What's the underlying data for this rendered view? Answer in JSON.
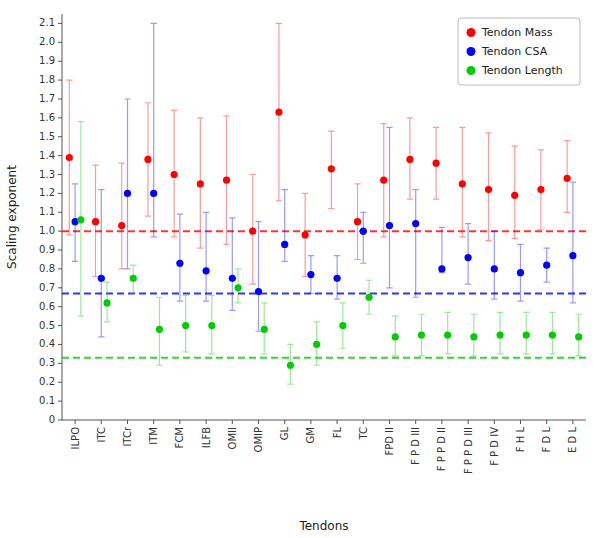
{
  "chart_data": {
    "type": "scatter",
    "xlabel": "Tendons",
    "ylabel": "Scaling exponent",
    "categories": [
      "ILPO",
      "ITC",
      "ITCr",
      "ITM",
      "FCM",
      "ILFB",
      "OMII",
      "OMIP",
      "GL",
      "GM",
      "FL",
      "TC",
      "FPD II",
      "F P D III",
      "F P P D II",
      "F P P D III",
      "F P D IV",
      "F H L",
      "F D L",
      "E D L"
    ],
    "series": [
      {
        "name": "Tendon Mass",
        "color": "#ff0000",
        "reference": 1.0,
        "values": [
          1.39,
          1.05,
          1.03,
          1.38,
          1.3,
          1.25,
          1.27,
          1.0,
          1.63,
          0.98,
          1.33,
          1.05,
          1.27,
          1.38,
          1.36,
          1.25,
          1.22,
          1.19,
          1.22,
          1.28
        ],
        "upper": [
          1.8,
          1.35,
          1.36,
          1.68,
          1.64,
          1.6,
          1.61,
          1.3,
          2.1,
          1.2,
          1.53,
          1.25,
          1.57,
          1.6,
          1.55,
          1.55,
          1.52,
          1.45,
          1.43,
          1.48
        ],
        "lower": [
          0.98,
          0.76,
          0.8,
          1.08,
          0.97,
          0.91,
          0.93,
          0.72,
          1.16,
          0.76,
          1.12,
          0.85,
          0.97,
          1.17,
          1.17,
          0.97,
          0.95,
          0.96,
          1.01,
          1.1
        ]
      },
      {
        "name": "Tendon CSA",
        "color": "#0000ff",
        "reference": 0.67,
        "values": [
          1.05,
          0.75,
          1.2,
          1.2,
          0.83,
          0.79,
          0.75,
          0.68,
          0.93,
          0.77,
          0.75,
          1.0,
          1.03,
          1.04,
          0.8,
          0.86,
          0.8,
          0.78,
          0.82,
          0.87
        ],
        "upper": [
          1.25,
          1.22,
          1.7,
          2.1,
          1.09,
          1.1,
          1.07,
          1.05,
          1.22,
          0.87,
          0.87,
          1.1,
          1.55,
          1.22,
          1.02,
          1.04,
          1.0,
          0.93,
          0.91,
          1.26
        ],
        "lower": [
          0.84,
          0.44,
          0.8,
          0.97,
          0.63,
          0.63,
          0.58,
          0.47,
          0.84,
          0.67,
          0.64,
          0.83,
          0.7,
          0.65,
          0.78,
          0.72,
          0.64,
          0.63,
          0.73,
          0.62
        ]
      },
      {
        "name": "Tendon Length",
        "color": "#00cc00",
        "reference": 0.33,
        "values": [
          1.06,
          0.62,
          0.75,
          0.48,
          0.5,
          0.5,
          0.7,
          0.48,
          0.29,
          0.4,
          0.5,
          0.65,
          0.44,
          0.45,
          0.45,
          0.44,
          0.45,
          0.45,
          0.45,
          0.44
        ],
        "upper": [
          1.58,
          0.73,
          0.82,
          0.65,
          0.66,
          0.66,
          0.8,
          0.62,
          0.4,
          0.52,
          0.62,
          0.74,
          0.55,
          0.56,
          0.57,
          0.56,
          0.57,
          0.57,
          0.57,
          0.56
        ],
        "lower": [
          0.55,
          0.52,
          0.67,
          0.29,
          0.36,
          0.35,
          0.62,
          0.35,
          0.19,
          0.29,
          0.38,
          0.56,
          0.34,
          0.34,
          0.35,
          0.34,
          0.35,
          0.35,
          0.35,
          0.34
        ]
      }
    ],
    "ylim": [
      0,
      2.15
    ],
    "yticks": [
      0,
      0.1,
      0.2,
      0.3,
      0.4,
      0.5,
      0.6,
      0.7,
      0.8,
      0.9,
      {
        "value": 1,
        "label": "1.0"
      },
      1.1,
      1.2,
      1.3,
      1.4,
      1.5,
      1.6,
      1.7,
      1.8,
      1.9,
      {
        "value": 2,
        "label": "2.0"
      },
      2.1
    ],
    "grid": false,
    "legend": "upper right"
  }
}
